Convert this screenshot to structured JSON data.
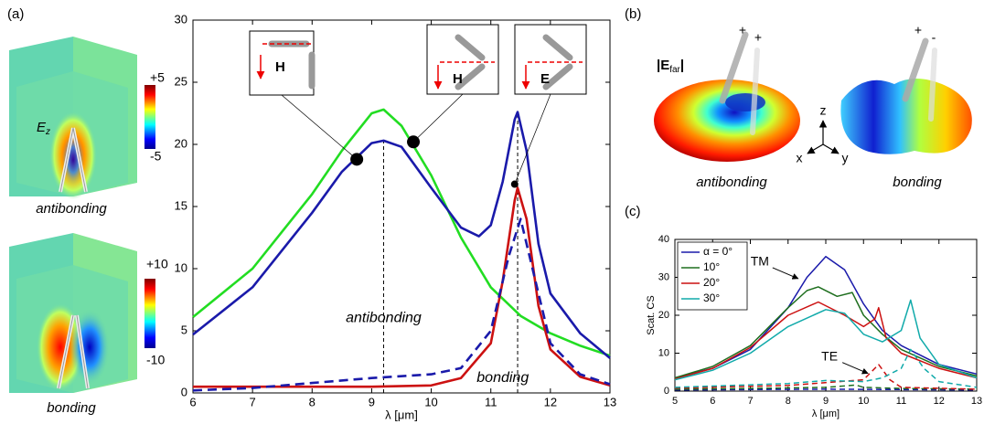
{
  "panels": {
    "a": "(a)",
    "b": "(b)",
    "c": "(c)"
  },
  "field_maps": [
    {
      "caption": "antibonding",
      "field": "E",
      "field_sub": "z",
      "cbar_max": "+5",
      "cbar_min": "-5"
    },
    {
      "caption": "bonding",
      "cbar_max": "+10",
      "cbar_min": "-10"
    }
  ],
  "far_field": {
    "label": "|E",
    "label_sub": "far",
    "label_end": "|",
    "signs": [
      "+",
      "+",
      "+",
      "-"
    ],
    "captions": [
      "antibonding",
      "bonding"
    ],
    "axes": [
      "z",
      "x",
      "y"
    ]
  },
  "chart_data": [
    {
      "type": "line",
      "xlabel": "λ [μm]",
      "xlim": [
        6,
        13
      ],
      "ylim": [
        0,
        30
      ],
      "xticks": [
        6,
        7,
        8,
        9,
        10,
        11,
        12,
        13
      ],
      "yticks": [
        0,
        5,
        10,
        15,
        20,
        25,
        30
      ],
      "series": [
        {
          "color": "#22dd22",
          "dash": false,
          "x": [
            6,
            7,
            8,
            8.5,
            9,
            9.2,
            9.5,
            10,
            10.5,
            11,
            11.5,
            12,
            12.5,
            13
          ],
          "values": [
            6.1,
            10,
            16,
            19.5,
            22.5,
            22.8,
            21.5,
            17.5,
            12.5,
            8.5,
            6.2,
            4.8,
            3.8,
            3.0
          ]
        },
        {
          "color": "#1a1aaa",
          "dash": false,
          "x": [
            6,
            7,
            8,
            8.5,
            9,
            9.2,
            9.5,
            10,
            10.5,
            10.8,
            11,
            11.2,
            11.4,
            11.45,
            11.6,
            11.8,
            12,
            12.5,
            13
          ],
          "values": [
            4.7,
            8.5,
            14.5,
            17.8,
            20.1,
            20.3,
            19.8,
            16.5,
            13.3,
            12.6,
            13.5,
            17,
            22,
            22.6,
            19.5,
            12,
            8,
            4.8,
            2.8
          ]
        },
        {
          "color": "#cc1111",
          "dash": false,
          "x": [
            6,
            7,
            8,
            9,
            10,
            10.5,
            11,
            11.2,
            11.4,
            11.45,
            11.6,
            11.8,
            12,
            12.5,
            13
          ],
          "values": [
            0.5,
            0.5,
            0.5,
            0.5,
            0.6,
            1.2,
            4,
            9,
            15.5,
            16.5,
            14,
            7,
            3.5,
            1.3,
            0.6
          ]
        },
        {
          "color": "#1a1aaa",
          "dash": true,
          "x": [
            6,
            7,
            8,
            9,
            10,
            10.5,
            11,
            11.3,
            11.5,
            11.7,
            12,
            12.5,
            13
          ],
          "values": [
            0.2,
            0.4,
            0.8,
            1.2,
            1.5,
            2,
            5,
            11,
            14,
            10,
            4,
            1.5,
            0.7
          ]
        }
      ],
      "vlines": [
        {
          "x": 9.2,
          "y": 20.3
        },
        {
          "x": 11.45,
          "y": 22.6
        }
      ],
      "points": [
        {
          "x": 8.75,
          "y": 18.8
        },
        {
          "x": 9.7,
          "y": 20.2
        },
        {
          "x": 11.4,
          "y": 16.8
        }
      ],
      "insets": [
        "H",
        "H",
        "E"
      ],
      "annotations": [
        {
          "text": "antibonding",
          "x": 9.2,
          "y": 6
        },
        {
          "text": "bonding",
          "x": 11.2,
          "y": 1.2
        }
      ]
    },
    {
      "type": "line",
      "xlabel": "λ [μm]",
      "ylabel": "Scat. CS",
      "xlim": [
        5,
        13
      ],
      "ylim": [
        0,
        40
      ],
      "xticks": [
        5,
        6,
        7,
        8,
        9,
        10,
        11,
        12,
        13
      ],
      "yticks": [
        0,
        10,
        20,
        30,
        40
      ],
      "legend": "upper left",
      "series": [
        {
          "name": "α = 0°",
          "color": "#1a1aaa",
          "dash": false,
          "x": [
            5,
            6,
            7,
            8,
            8.5,
            9,
            9.5,
            10,
            10.5,
            11,
            12,
            13
          ],
          "values": [
            3.5,
            6,
            11,
            22,
            30,
            35.5,
            32,
            23,
            16,
            12,
            7,
            4.5
          ]
        },
        {
          "name": "10°",
          "color": "#1e6e1e",
          "dash": false,
          "x": [
            5,
            6,
            7,
            8,
            8.5,
            8.8,
            9.3,
            9.7,
            10,
            10.5,
            11,
            12,
            13
          ],
          "values": [
            3.5,
            6.5,
            12,
            22,
            26.5,
            27.5,
            25,
            26,
            20,
            15,
            11,
            6.5,
            4
          ]
        },
        {
          "name": "20°",
          "color": "#cc1111",
          "dash": false,
          "x": [
            5,
            6,
            7,
            8,
            8.8,
            9.5,
            10,
            10.3,
            10.4,
            10.6,
            11,
            12,
            13
          ],
          "values": [
            3.2,
            6,
            11.5,
            20,
            23.5,
            20,
            17,
            19,
            22,
            14,
            10,
            6,
            3.5
          ]
        },
        {
          "name": "30°",
          "color": "#11aaaa",
          "dash": false,
          "x": [
            5,
            6,
            7,
            8,
            9,
            9.5,
            10,
            10.5,
            11,
            11.25,
            11.5,
            12,
            13
          ],
          "values": [
            3,
            5.5,
            10,
            17,
            21.5,
            20.5,
            15,
            13,
            16,
            24,
            14,
            7,
            3.5
          ]
        },
        {
          "color": "#1a1aaa",
          "dash": true,
          "x": [
            5,
            7,
            9,
            11,
            13
          ],
          "values": [
            0.3,
            0.4,
            0.5,
            0.4,
            0.3
          ]
        },
        {
          "color": "#1e6e1e",
          "dash": true,
          "x": [
            5,
            7,
            9,
            9.8,
            10,
            11,
            13
          ],
          "values": [
            0.5,
            0.7,
            1,
            1.6,
            1,
            0.7,
            0.5
          ]
        },
        {
          "color": "#cc1111",
          "dash": true,
          "x": [
            5,
            8,
            10,
            10.4,
            10.7,
            11,
            13
          ],
          "values": [
            0.8,
            1.5,
            3,
            7,
            3,
            1,
            0.5
          ]
        },
        {
          "color": "#11aaaa",
          "dash": true,
          "x": [
            5,
            8,
            9,
            10,
            10.5,
            11,
            11.25,
            11.6,
            12,
            13
          ],
          "values": [
            1,
            2,
            2.8,
            2.5,
            3.5,
            6,
            11,
            6,
            2.5,
            1
          ]
        }
      ],
      "annotations": [
        {
          "text": "TM",
          "x": 7.25,
          "y": 34
        },
        {
          "text": "TE",
          "x": 9.1,
          "y": 9
        }
      ]
    }
  ]
}
